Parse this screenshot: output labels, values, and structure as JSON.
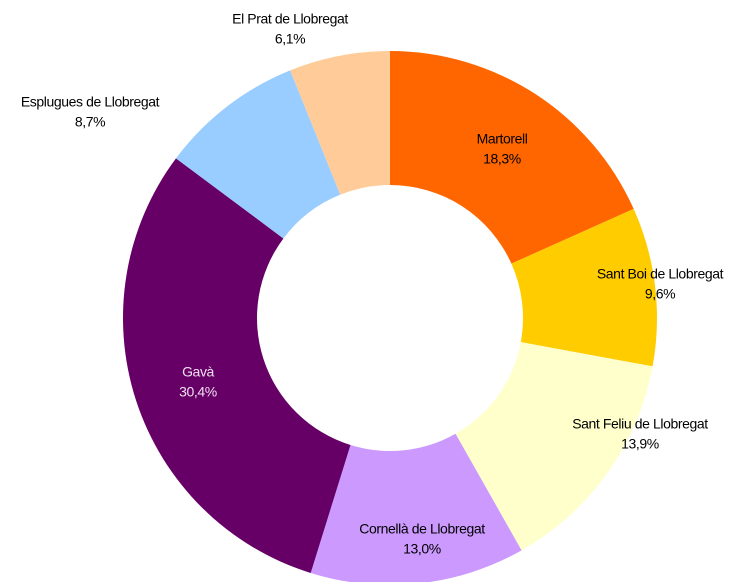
{
  "chart_data": {
    "type": "donut",
    "categories": [
      "Martorell",
      "Sant Boi de Llobregat",
      "Sant Feliu de Llobregat",
      "Cornellà de Llobregat",
      "Gavà",
      "Esplugues de Llobregat",
      "El Prat de Llobregat"
    ],
    "values": [
      18.3,
      9.6,
      13.9,
      13.0,
      30.4,
      8.7,
      6.1
    ],
    "value_labels": [
      "18,3%",
      "9,6%",
      "13,9%",
      "13,0%",
      "30,4%",
      "8,7%",
      "6,1%"
    ],
    "colors": [
      "#ff6600",
      "#ffcc00",
      "#ffffcc",
      "#cc99ff",
      "#660066",
      "#99ccff",
      "#ffcc99"
    ]
  }
}
